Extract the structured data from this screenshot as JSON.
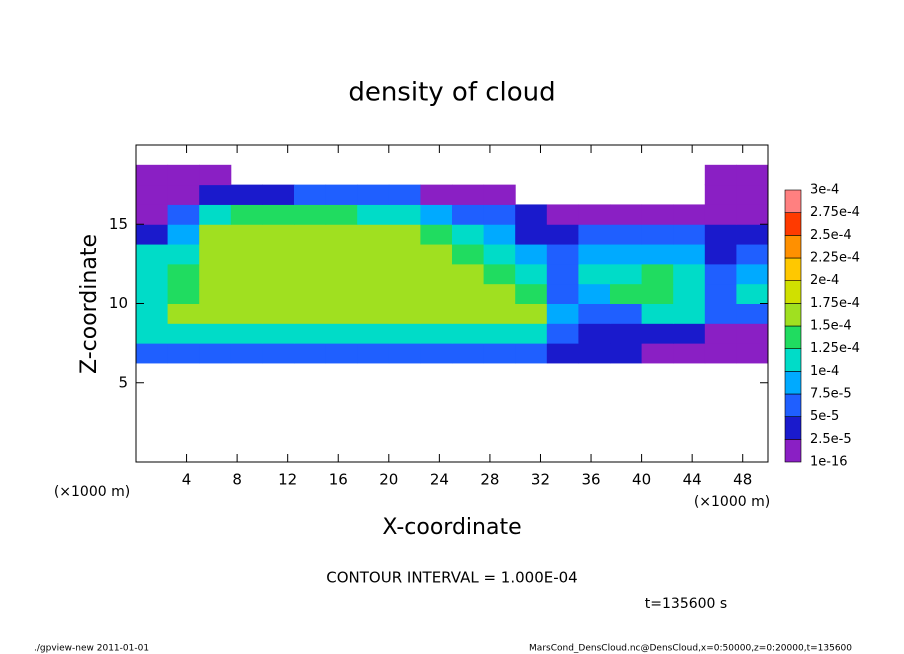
{
  "chart_data": {
    "type": "heatmap",
    "title": "density of cloud",
    "x_label": "X-coordinate",
    "y_label": "Z-coordinate",
    "x_unit_left": "(×1000 m)",
    "x_unit_right": "(×1000 m)",
    "contour_note": "CONTOUR INTERVAL = 1.000E-04",
    "time_note": "t=135600 s",
    "footer_left": "./gpview-new  2011-01-01",
    "footer_right": "MarsCond_DensCloud.nc@DensCloud,x=0:50000,z=0:20000,t=135600",
    "xlim": [
      0,
      50
    ],
    "ylim": [
      0,
      20
    ],
    "xticks": [
      4,
      8,
      12,
      16,
      20,
      24,
      28,
      32,
      36,
      40,
      44,
      48
    ],
    "yticks": [
      5,
      10,
      15
    ],
    "x_edges": [
      0,
      2.5,
      5,
      7.5,
      10,
      12.5,
      15,
      17.5,
      20,
      22.5,
      25,
      27.5,
      30,
      32.5,
      35,
      37.5,
      40,
      42.5,
      45,
      47.5,
      50
    ],
    "y_edges": [
      0,
      1.25,
      2.5,
      3.75,
      5,
      6.25,
      7.5,
      8.75,
      10,
      11.25,
      12.5,
      13.75,
      15,
      16.25,
      17.5,
      18.75,
      20
    ],
    "levels": [
      {
        "value": 1e-16,
        "label": "1e-16"
      },
      {
        "value": 2.5e-05,
        "label": "2.5e-5"
      },
      {
        "value": 5e-05,
        "label": "5e-5"
      },
      {
        "value": 7.5e-05,
        "label": "7.5e-5"
      },
      {
        "value": 0.0001,
        "label": "1e-4"
      },
      {
        "value": 0.000125,
        "label": "1.25e-4"
      },
      {
        "value": 0.00015,
        "label": "1.5e-4"
      },
      {
        "value": 0.000175,
        "label": "1.75e-4"
      },
      {
        "value": 0.0002,
        "label": "2e-4"
      },
      {
        "value": 0.000225,
        "label": "2.25e-4"
      },
      {
        "value": 0.00025,
        "label": "2.5e-4"
      },
      {
        "value": 0.000275,
        "label": "2.75e-4"
      },
      {
        "value": 0.0003,
        "label": "3e-4"
      }
    ],
    "colors": [
      "#8a1fc4",
      "#1a1acc",
      "#1f5fff",
      "#00aaff",
      "#00dcc8",
      "#20dc60",
      "#a0e020",
      "#d0e000",
      "#ffc800",
      "#ff9000",
      "#ff3a00",
      "#ff8080"
    ],
    "values": [
      [
        null,
        null,
        null,
        null,
        null,
        null,
        null,
        null,
        null,
        null,
        null,
        null,
        null,
        null,
        null,
        null,
        null,
        null,
        null,
        null
      ],
      [
        null,
        null,
        null,
        null,
        null,
        null,
        null,
        null,
        null,
        null,
        null,
        null,
        null,
        null,
        null,
        null,
        null,
        null,
        null,
        null
      ],
      [
        null,
        null,
        null,
        null,
        null,
        null,
        null,
        null,
        null,
        null,
        null,
        null,
        null,
        null,
        null,
        null,
        null,
        null,
        null,
        null
      ],
      [
        null,
        null,
        null,
        null,
        null,
        null,
        null,
        null,
        null,
        null,
        null,
        null,
        null,
        null,
        null,
        null,
        null,
        null,
        null,
        null
      ],
      [
        null,
        null,
        null,
        null,
        null,
        null,
        null,
        null,
        null,
        null,
        null,
        null,
        null,
        null,
        null,
        null,
        null,
        null,
        null,
        null
      ],
      [
        6e-05,
        6e-05,
        6e-05,
        6e-05,
        6e-05,
        6e-05,
        6e-05,
        6e-05,
        6e-05,
        6e-05,
        6e-05,
        6e-05,
        6e-05,
        3e-05,
        3e-05,
        3e-05,
        1e-05,
        1e-05,
        1e-05,
        1e-05
      ],
      [
        0.00011,
        0.0001,
        0.0001,
        0.0001,
        0.0001,
        0.0001,
        0.0001,
        0.0001,
        0.0001,
        0.0001,
        0.0001,
        0.0001,
        0.0001,
        6e-05,
        3e-05,
        3e-05,
        3e-05,
        3e-05,
        2e-05,
        2e-05
      ],
      [
        0.0001,
        0.00015,
        0.00015,
        0.00015,
        0.00015,
        0.00015,
        0.00015,
        0.00015,
        0.00015,
        0.00015,
        0.00015,
        0.00015,
        0.00015,
        8e-05,
        6e-05,
        6e-05,
        0.00011,
        0.00011,
        6e-05,
        6e-05
      ],
      [
        0.00012,
        0.000145,
        0.000155,
        0.000155,
        0.000155,
        0.000155,
        0.000155,
        0.000155,
        0.000155,
        0.000155,
        0.000155,
        0.000155,
        0.00014,
        7e-05,
        9e-05,
        0.00013,
        0.00013,
        0.000105,
        6e-05,
        0.00011
      ],
      [
        0.00012,
        0.00014,
        0.000155,
        0.000155,
        0.000155,
        0.000155,
        0.000155,
        0.000155,
        0.000155,
        0.000155,
        0.000155,
        0.000145,
        0.00012,
        5e-05,
        0.00011,
        0.00011,
        0.00013,
        0.00012,
        5e-05,
        8e-05
      ],
      [
        0.00011,
        0.00012,
        0.000155,
        0.000155,
        0.000155,
        0.000155,
        0.000155,
        0.000155,
        0.000155,
        0.000155,
        0.00014,
        0.00012,
        9e-05,
        5e-05,
        8e-05,
        8e-05,
        8e-05,
        8e-05,
        4e-05,
        6e-05
      ],
      [
        3e-05,
        9e-05,
        0.00015,
        0.00015,
        0.00015,
        0.00015,
        0.00015,
        0.00015,
        0.00015,
        0.00013,
        0.0001,
        8e-05,
        4e-05,
        4e-05,
        5e-05,
        5e-05,
        5e-05,
        5e-05,
        4e-05,
        4e-05
      ],
      [
        2e-05,
        5e-05,
        0.00011,
        0.000145,
        0.000145,
        0.000145,
        0.000145,
        0.00012,
        0.000105,
        8e-05,
        5e-05,
        5e-05,
        3e-05,
        2e-05,
        1e-05,
        1e-05,
        1e-05,
        1e-05,
        1e-05,
        1e-05
      ],
      [
        1e-05,
        2e-05,
        4e-05,
        4e-05,
        4e-05,
        5e-05,
        5e-05,
        5e-05,
        5e-05,
        2e-05,
        2e-05,
        1e-05,
        null,
        null,
        null,
        null,
        null,
        null,
        1e-05,
        1e-05
      ],
      [
        1e-05,
        1e-05,
        1e-05,
        null,
        null,
        null,
        null,
        null,
        null,
        null,
        null,
        null,
        null,
        null,
        null,
        null,
        null,
        null,
        1e-05,
        1e-05
      ],
      [
        null,
        null,
        null,
        null,
        null,
        null,
        null,
        null,
        null,
        null,
        null,
        null,
        null,
        null,
        null,
        null,
        null,
        null,
        null,
        null
      ]
    ]
  }
}
